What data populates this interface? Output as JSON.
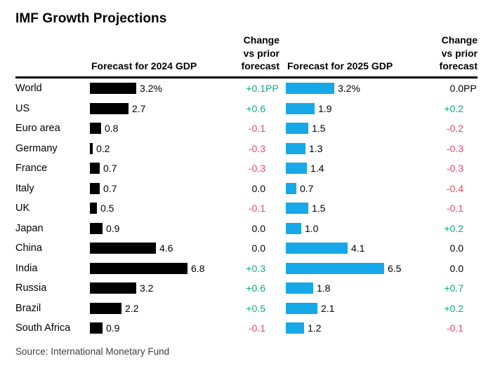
{
  "title": "IMF Growth Projections",
  "source": "Source: International Monetary Fund",
  "colors": {
    "positive": "#0faa80",
    "negative": "#ef4468",
    "neutral": "#000000",
    "bar_2024": "#000000",
    "bar_2025": "#16a8e8",
    "header_rule": "#000000",
    "source_text": "#404040"
  },
  "chart_data": {
    "type": "bar",
    "title": "IMF Growth Projections",
    "orientation": "horizontal",
    "grid": false,
    "legend": false,
    "xlim": [
      0,
      7
    ],
    "unit": "percent",
    "columns": [
      "Forecast for 2024 GDP",
      "Change vs prior forecast",
      "Forecast for 2025 GDP",
      "Change vs prior forecast"
    ],
    "categories": [
      "World",
      "US",
      "Euro area",
      "Germany",
      "France",
      "Italy",
      "UK",
      "Japan",
      "China",
      "India",
      "Russia",
      "Brazil",
      "South Africa"
    ],
    "series": [
      {
        "name": "Forecast for 2024 GDP",
        "values": [
          3.2,
          2.7,
          0.8,
          0.2,
          0.7,
          0.7,
          0.5,
          0.9,
          4.6,
          6.8,
          3.2,
          2.2,
          0.9
        ],
        "labels": [
          "3.2%",
          "2.7",
          "0.8",
          "0.2",
          "0.7",
          "0.7",
          "0.5",
          "0.9",
          "4.6",
          "6.8",
          "3.2",
          "2.2",
          "0.9"
        ]
      },
      {
        "name": "Change vs prior forecast (2024)",
        "labels": [
          "+0.1PP",
          "+0.6",
          "-0.1",
          "-0.3",
          "-0.3",
          "0.0",
          "-0.1",
          "0.0",
          "0.0",
          "+0.3",
          "+0.6",
          "+0.5",
          "-0.1"
        ]
      },
      {
        "name": "Forecast for 2025 GDP",
        "values": [
          3.2,
          1.9,
          1.5,
          1.3,
          1.4,
          0.7,
          1.5,
          1.0,
          4.1,
          6.5,
          1.8,
          2.1,
          1.2
        ],
        "labels": [
          "3.2%",
          "1.9",
          "1.5",
          "1.3",
          "1.4",
          "0.7",
          "1.5",
          "1.0",
          "4.1",
          "6.5",
          "1.8",
          "2.1",
          "1.2"
        ]
      },
      {
        "name": "Change vs prior forecast (2025)",
        "labels": [
          "0.0PP",
          "+0.2",
          "-0.2",
          "-0.3",
          "-0.3",
          "-0.4",
          "-0.1",
          "+0.2",
          "0.0",
          "0.0",
          "+0.7",
          "+0.2",
          "-0.1"
        ]
      }
    ]
  }
}
